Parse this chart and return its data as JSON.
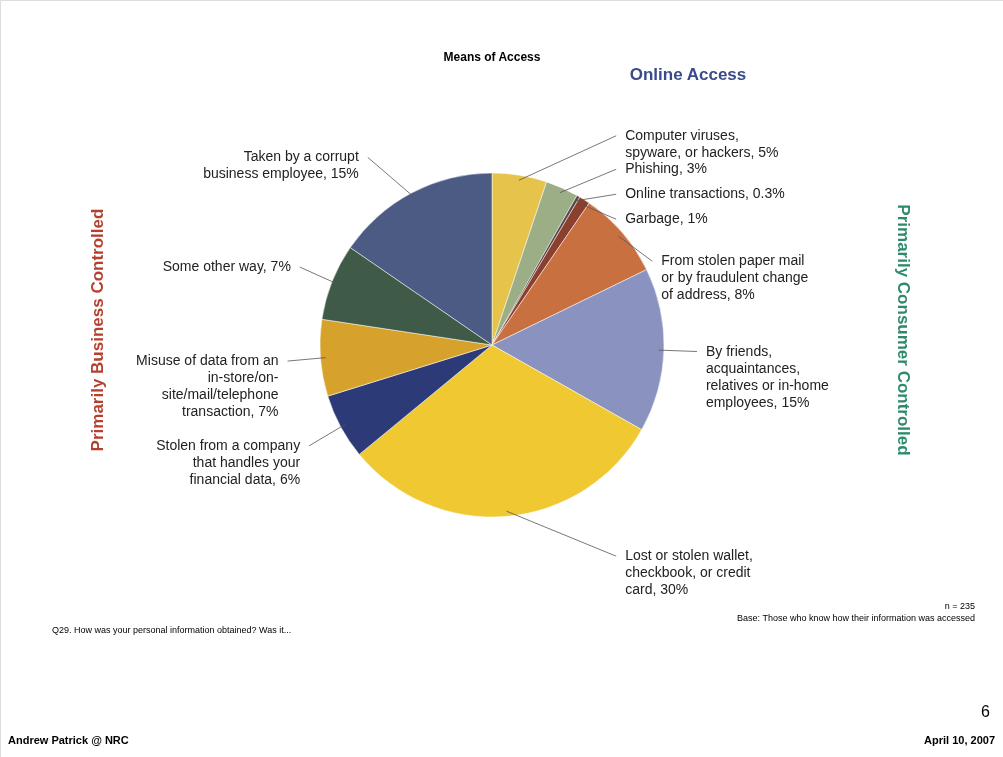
{
  "chart_data": {
    "type": "pie",
    "title": "Means of Access",
    "categories": [
      "Computer viruses, spyware, or hackers",
      "Phishing",
      "Online transactions",
      "Garbage",
      "From stolen paper mail or by fraudulent change of address",
      "By friends, acquaintances, relatives or in-home employees",
      "Lost or stolen wallet, checkbook, or credit card",
      "Stolen from a company that handles your financial data",
      "Misuse of data from an in-store/on-site/mail/telephone transaction",
      "Some other way",
      "Taken by a corrupt business employee"
    ],
    "values": [
      5,
      3,
      0.3,
      1,
      8,
      15,
      30,
      6,
      7,
      7,
      15
    ],
    "value_labels": [
      "5%",
      "3%",
      "0.3%",
      "1%",
      "8%",
      "15%",
      "30%",
      "6%",
      "7%",
      "7%",
      "15%"
    ],
    "colors": [
      "#e6c34a",
      "#9cae86",
      "#5a4a4a",
      "#8b3f2e",
      "#c8703f",
      "#8a93c0",
      "#f0c832",
      "#2c3b78",
      "#d6a22c",
      "#3f5a47",
      "#4b5b84"
    ],
    "annotations": [
      "Online Access",
      "Primarily Business Controlled",
      "Primarily Consumer Controlled",
      "n = 235",
      "Base: Those who know how their information was accessed",
      "Q29. How was your personal information obtained? Was it...",
      "6",
      "Andrew Patrick @ NRC",
      "April 10, 2007"
    ]
  }
}
